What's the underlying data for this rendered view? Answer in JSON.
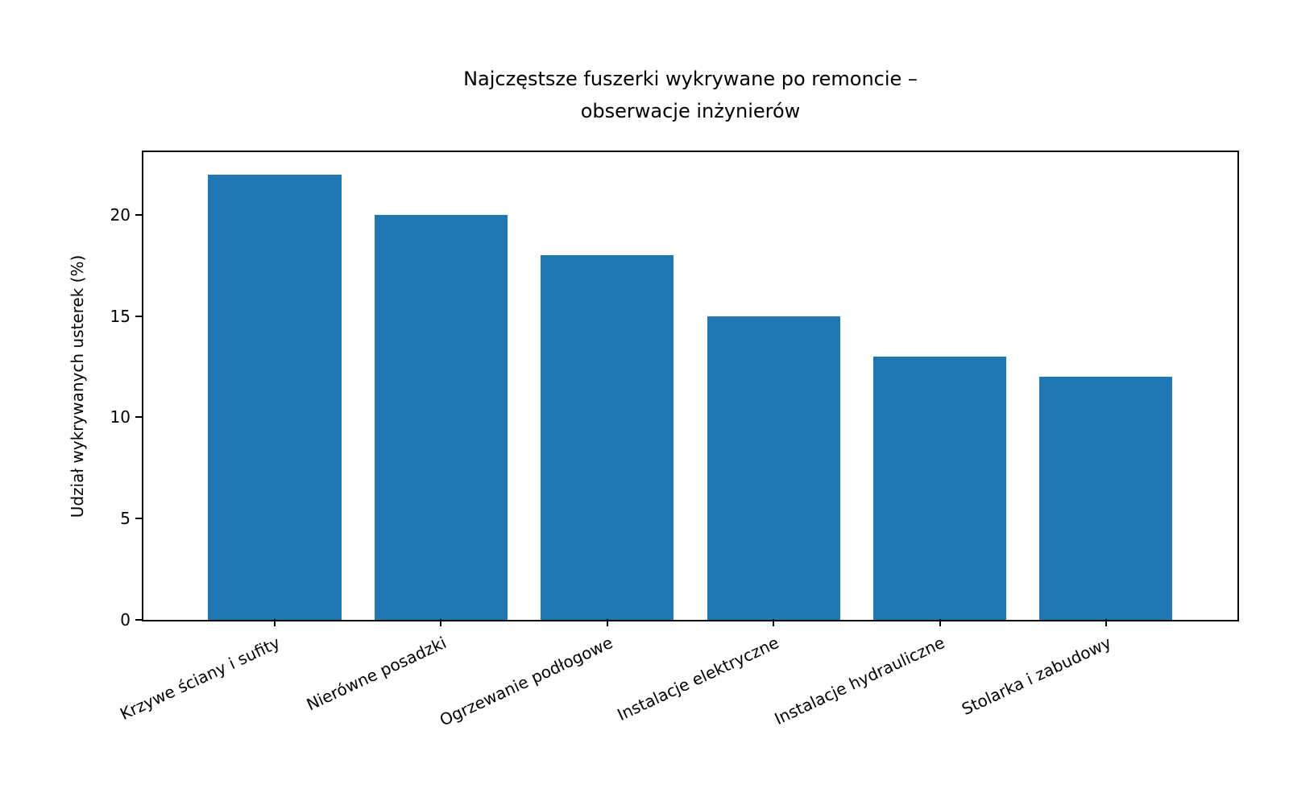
{
  "chart_data": {
    "type": "bar",
    "title": "Najczęstsze fuszerki wykrywane po remoncie –\nobserwacje inżynierów",
    "title_lines": [
      "Najczęstsze fuszerki wykrywane po remoncie –",
      "obserwacje inżynierów"
    ],
    "xlabel": "",
    "ylabel": "Udział wykrywanych usterek (%)",
    "categories": [
      "Krzywe ściany i sufity",
      "Nierówne posadzki",
      "Ogrzewanie podłogowe",
      "Instalacje elektryczne",
      "Instalacje hydrauliczne",
      "Stolarka i zabudowy"
    ],
    "values": [
      22,
      20,
      18,
      15,
      13,
      12
    ],
    "ylim": [
      0,
      23.1
    ],
    "yticks": [
      0,
      5,
      10,
      15,
      20
    ],
    "grid": false,
    "legend": null,
    "bar_color": "#1f77b4"
  }
}
